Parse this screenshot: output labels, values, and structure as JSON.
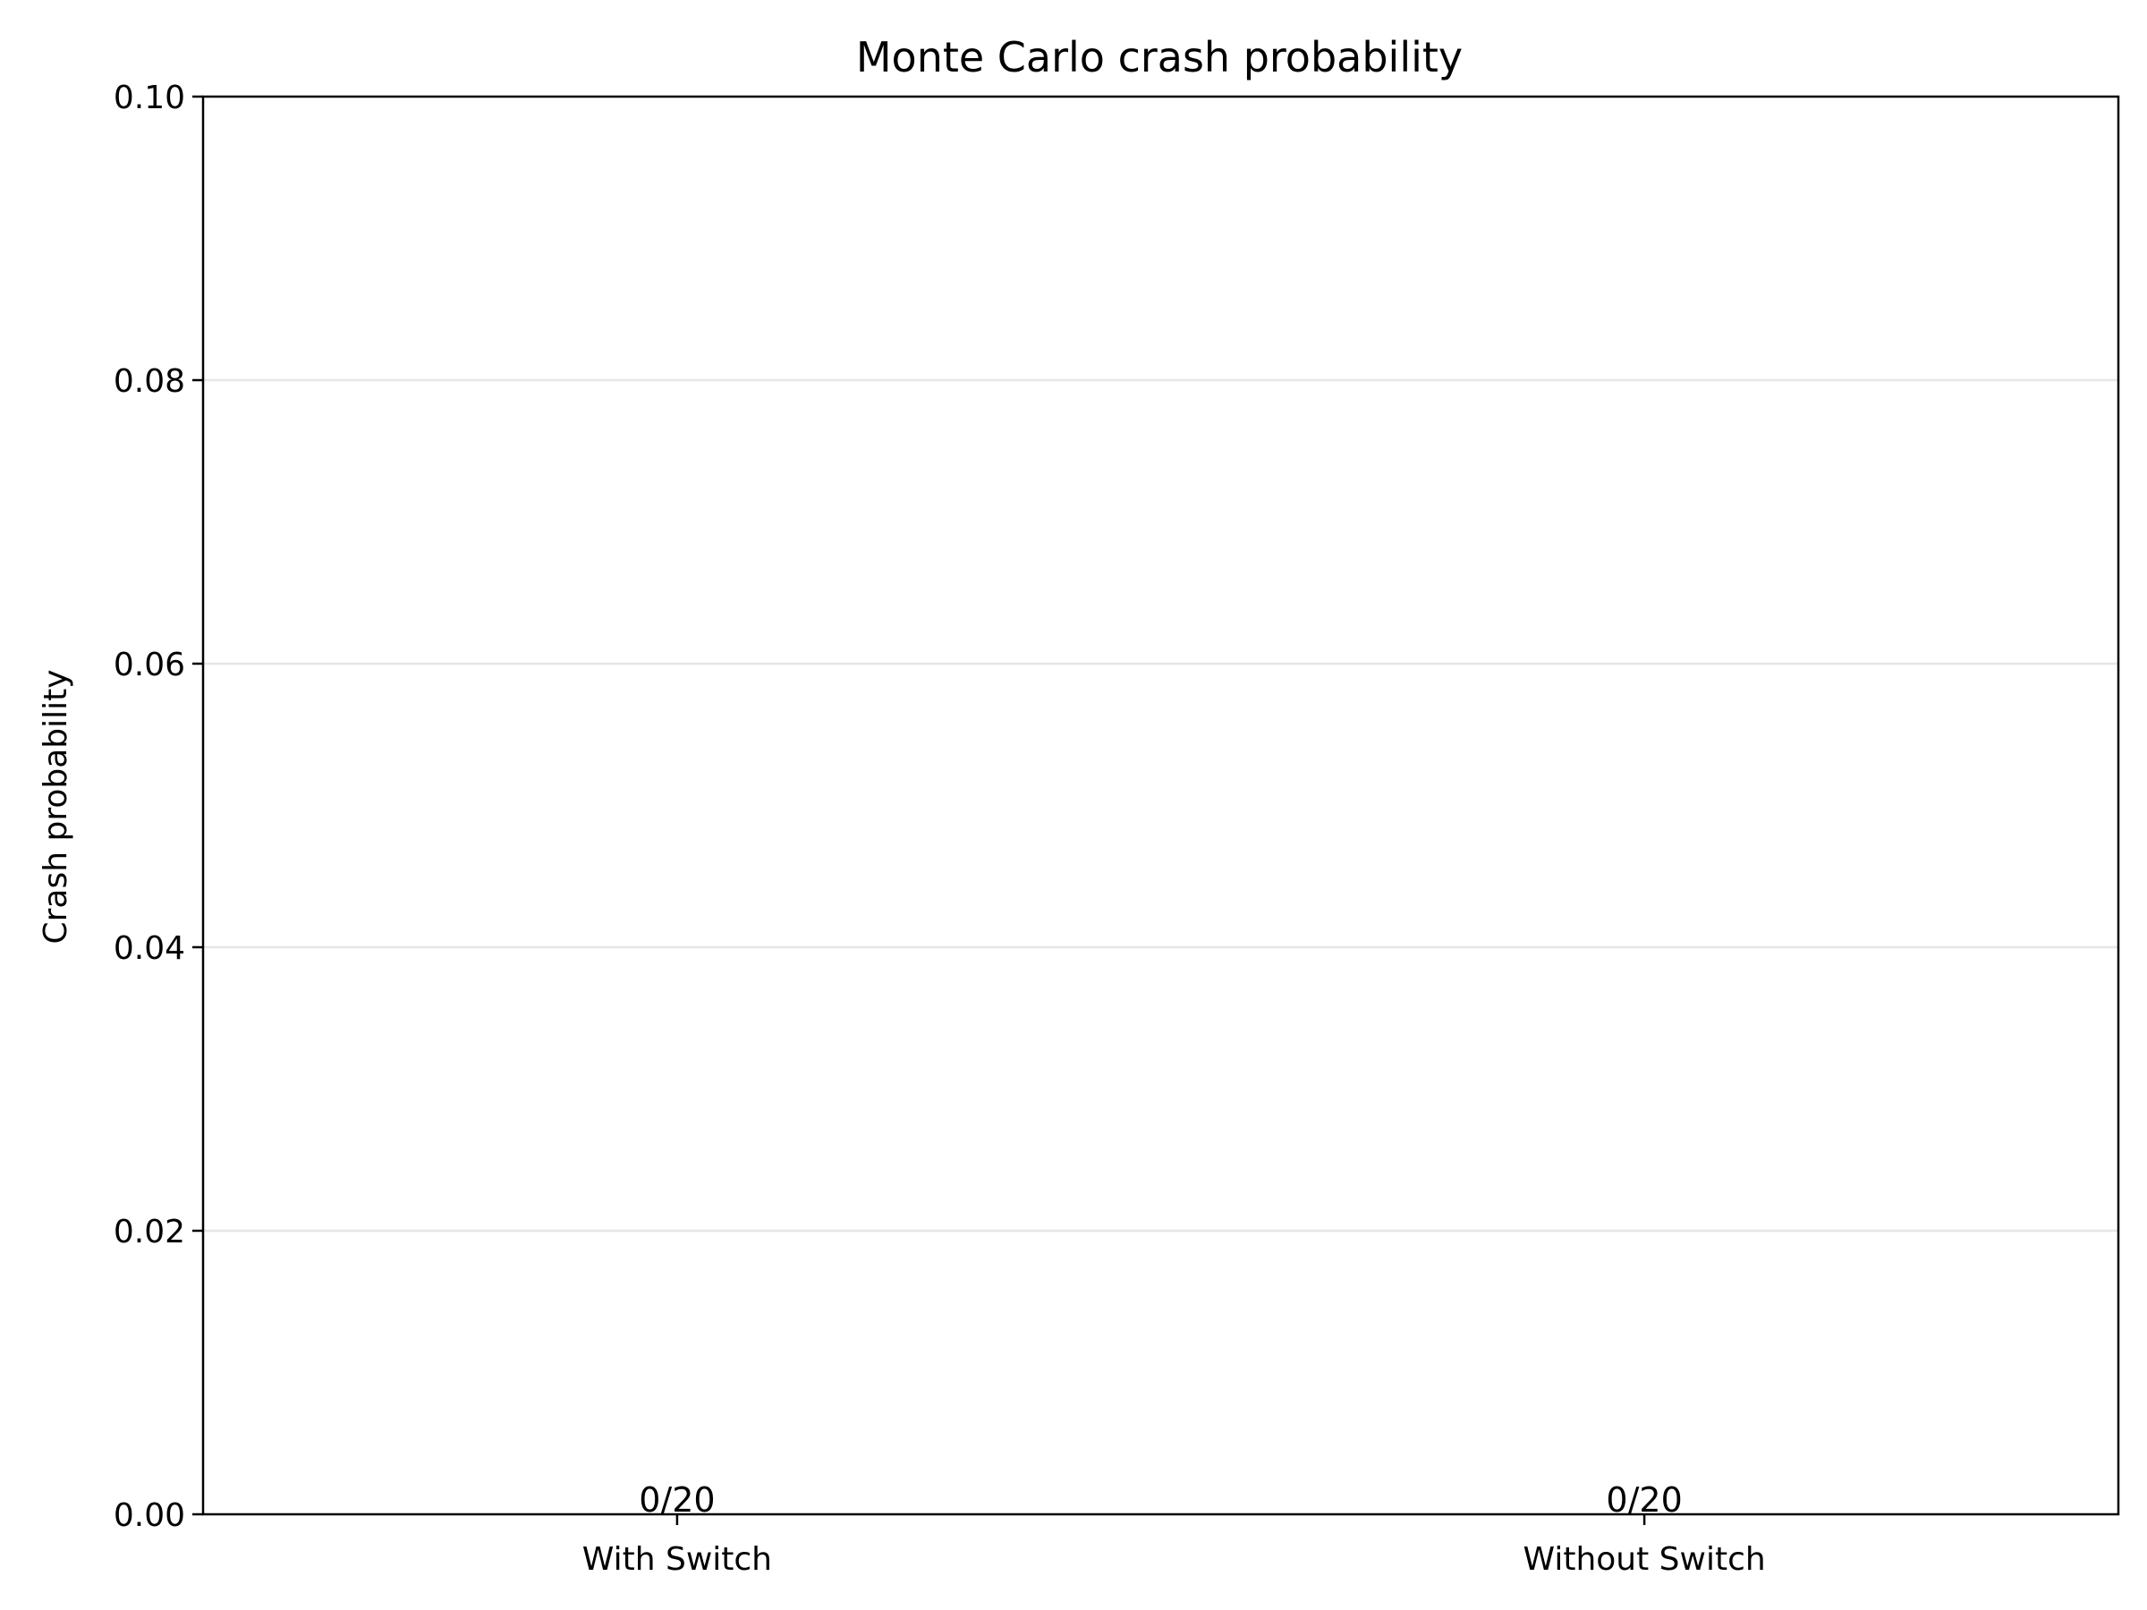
{
  "chart_data": {
    "type": "bar",
    "title": "Monte Carlo crash probability",
    "xlabel": "",
    "ylabel": "Crash probability",
    "categories": [
      "With Switch",
      "Without Switch"
    ],
    "values": [
      0.0,
      0.0
    ],
    "data_labels": [
      "0/20",
      "0/20"
    ],
    "ylim": [
      0,
      0.1
    ],
    "yticks": [
      0.0,
      0.02,
      0.04,
      0.06,
      0.08,
      0.1
    ],
    "ytick_labels": [
      "0.00",
      "0.02",
      "0.04",
      "0.06",
      "0.08",
      "0.10"
    ],
    "grid": "y",
    "colors": {
      "axis": "#000000",
      "grid": "#e6e6e6",
      "bar": "#1f77b4"
    }
  }
}
